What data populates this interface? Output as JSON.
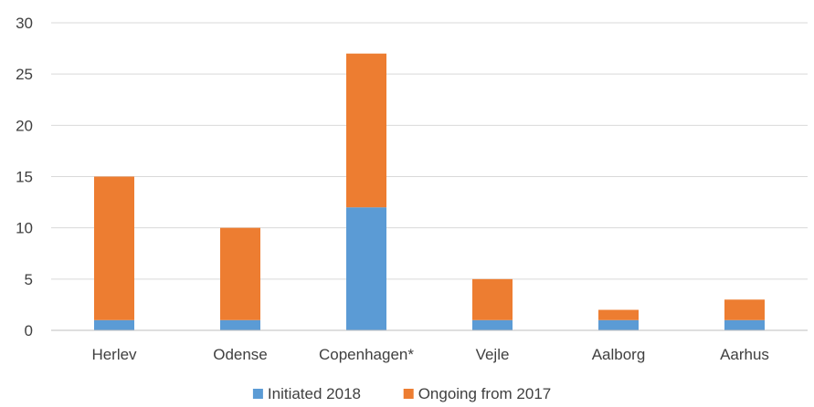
{
  "chart_data": {
    "type": "bar",
    "stacked": true,
    "title": "",
    "xlabel": "",
    "ylabel": "",
    "categories": [
      "Herlev",
      "Odense",
      "Copenhagen*",
      "Vejle",
      "Aalborg",
      "Aarhus"
    ],
    "series": [
      {
        "name": "Initiated 2018",
        "values": [
          1,
          1,
          12,
          1,
          1,
          1
        ],
        "color": "#5B9BD5"
      },
      {
        "name": "Ongoing from 2017",
        "values": [
          14,
          9,
          15,
          4,
          1,
          2
        ],
        "color": "#ED7D31"
      }
    ],
    "ylim": [
      0,
      30
    ],
    "yticks": [
      0,
      5,
      10,
      15,
      20,
      25,
      30
    ],
    "grid": true,
    "legend_position": "bottom",
    "colors": {
      "gridline": "#D9D9D9",
      "axis": "#BFBFBF",
      "text": "#404040"
    }
  }
}
